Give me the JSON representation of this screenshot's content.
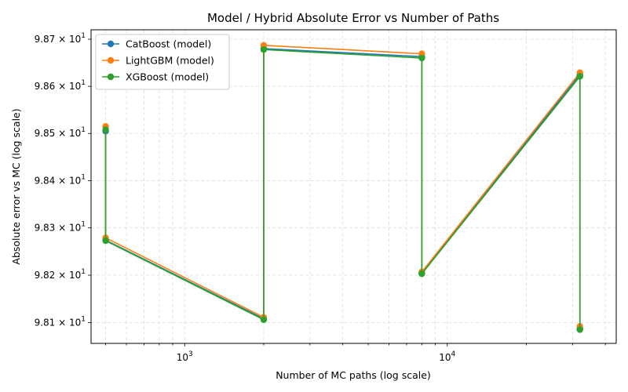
{
  "chart_data": {
    "type": "line",
    "title": "Model / Hybrid Absolute Error vs Number of Paths",
    "xlabel": "Number of MC paths (log scale)",
    "ylabel": "Absolute error vs MC (log scale)",
    "xscale": "log",
    "yscale": "log",
    "xlim": [
      440,
      44000
    ],
    "ylim": [
      98.056,
      98.72
    ],
    "grid": true,
    "legend_position": "top-left",
    "x_ticks": [
      {
        "value": 1000,
        "base": "10",
        "exp": "3"
      },
      {
        "value": 10000,
        "base": "10",
        "exp": "4"
      }
    ],
    "y_ticks": [
      {
        "value": 98.1,
        "mant": "9.81",
        "base": "× 10",
        "exp": "1"
      },
      {
        "value": 98.2,
        "mant": "9.82",
        "base": "× 10",
        "exp": "1"
      },
      {
        "value": 98.3,
        "mant": "9.83",
        "base": "× 10",
        "exp": "1"
      },
      {
        "value": 98.4,
        "mant": "9.84",
        "base": "× 10",
        "exp": "1"
      },
      {
        "value": 98.5,
        "mant": "9.85",
        "base": "× 10",
        "exp": "1"
      },
      {
        "value": 98.6,
        "mant": "9.86",
        "base": "× 10",
        "exp": "1"
      },
      {
        "value": 98.7,
        "mant": "9.87",
        "base": "× 10",
        "exp": "1"
      }
    ],
    "x": [
      500,
      500,
      2000,
      2000,
      8000,
      8000,
      32000,
      32000
    ],
    "series": [
      {
        "name": "CatBoost (model)",
        "color": "#1f77b4",
        "values": [
          98.505,
          98.274,
          98.108,
          98.68,
          98.663,
          98.204,
          98.625,
          98.087
        ]
      },
      {
        "name": "LightGBM (model)",
        "color": "#ff7f0e",
        "values": [
          98.515,
          98.279,
          98.111,
          98.687,
          98.669,
          98.207,
          98.629,
          98.092
        ]
      },
      {
        "name": "XGBoost (model)",
        "color": "#2ca02c",
        "values": [
          98.508,
          98.273,
          98.106,
          98.678,
          98.66,
          98.203,
          98.621,
          98.085
        ]
      }
    ]
  }
}
